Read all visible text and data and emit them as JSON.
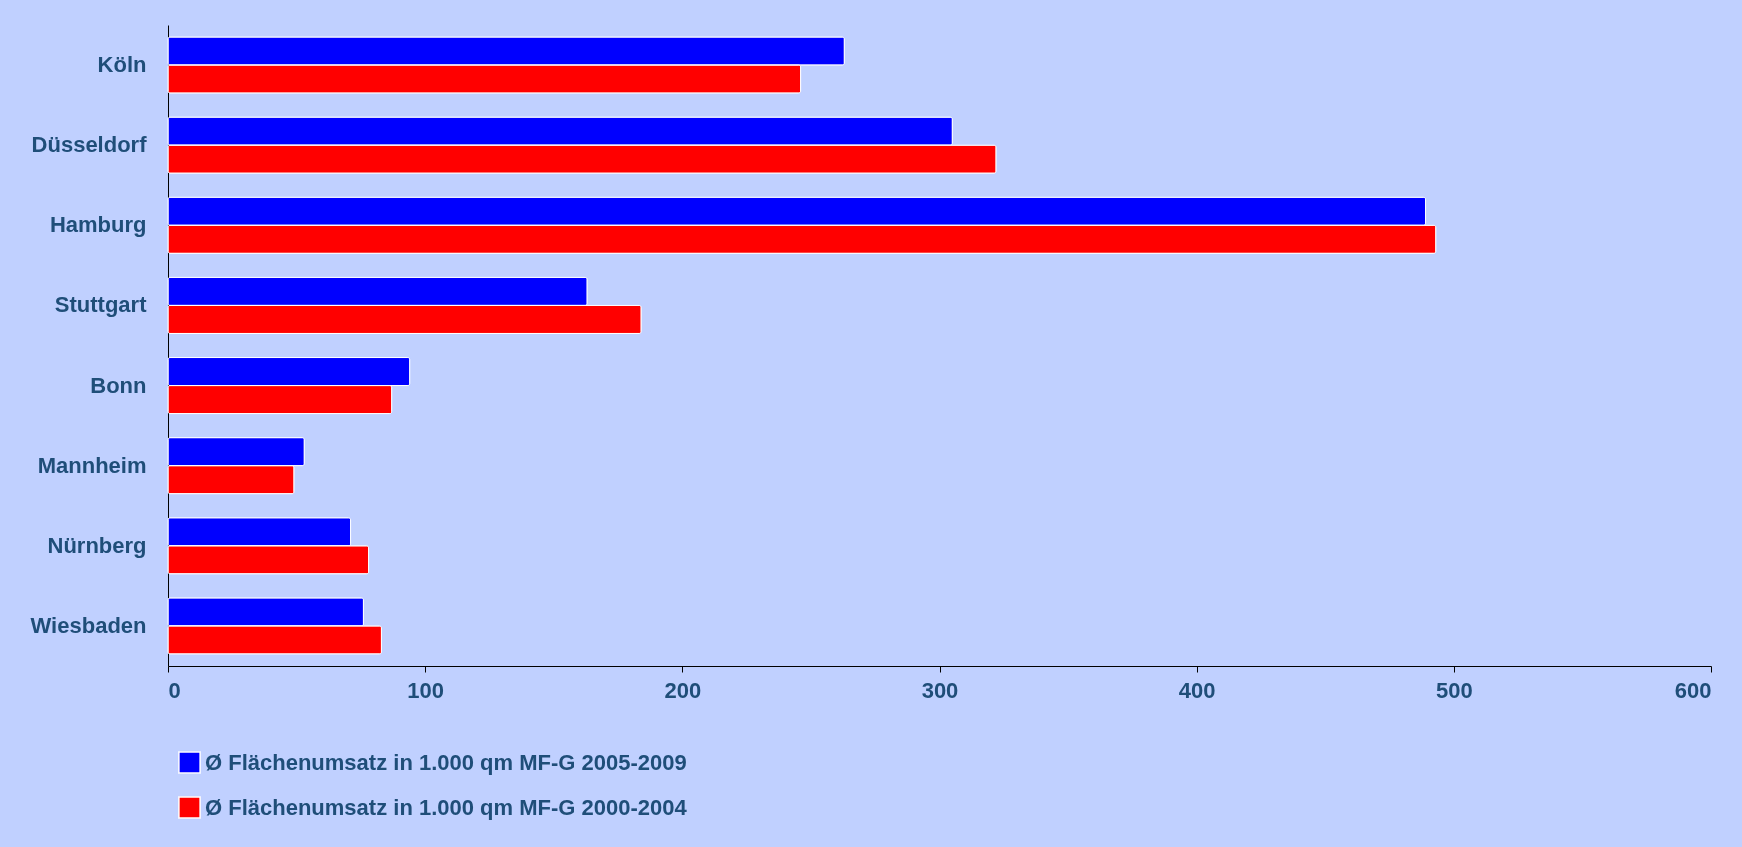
{
  "chart_data": {
    "type": "bar",
    "orientation": "horizontal",
    "categories": [
      "Köln",
      "Düsseldorf",
      "Hamburg",
      "Stuttgart",
      "Bonn",
      "Mannheim",
      "Nürnberg",
      "Wiesbaden"
    ],
    "series": [
      {
        "name": "Ø Flächenumsatz in 1.000 qm MF-G 2005-2009",
        "color": "#0000ff",
        "values": [
          263,
          305,
          489,
          163,
          94,
          53,
          71,
          76
        ]
      },
      {
        "name": "Ø Flächenumsatz in 1.000 qm MF-G 2000-2004",
        "color": "#ff0000",
        "values": [
          246,
          322,
          493,
          184,
          87,
          49,
          78,
          83
        ]
      }
    ],
    "xlim": [
      0,
      600
    ],
    "xticks": [
      0,
      100,
      200,
      300,
      400,
      500,
      600
    ],
    "grid": false,
    "legend": "bottom"
  }
}
